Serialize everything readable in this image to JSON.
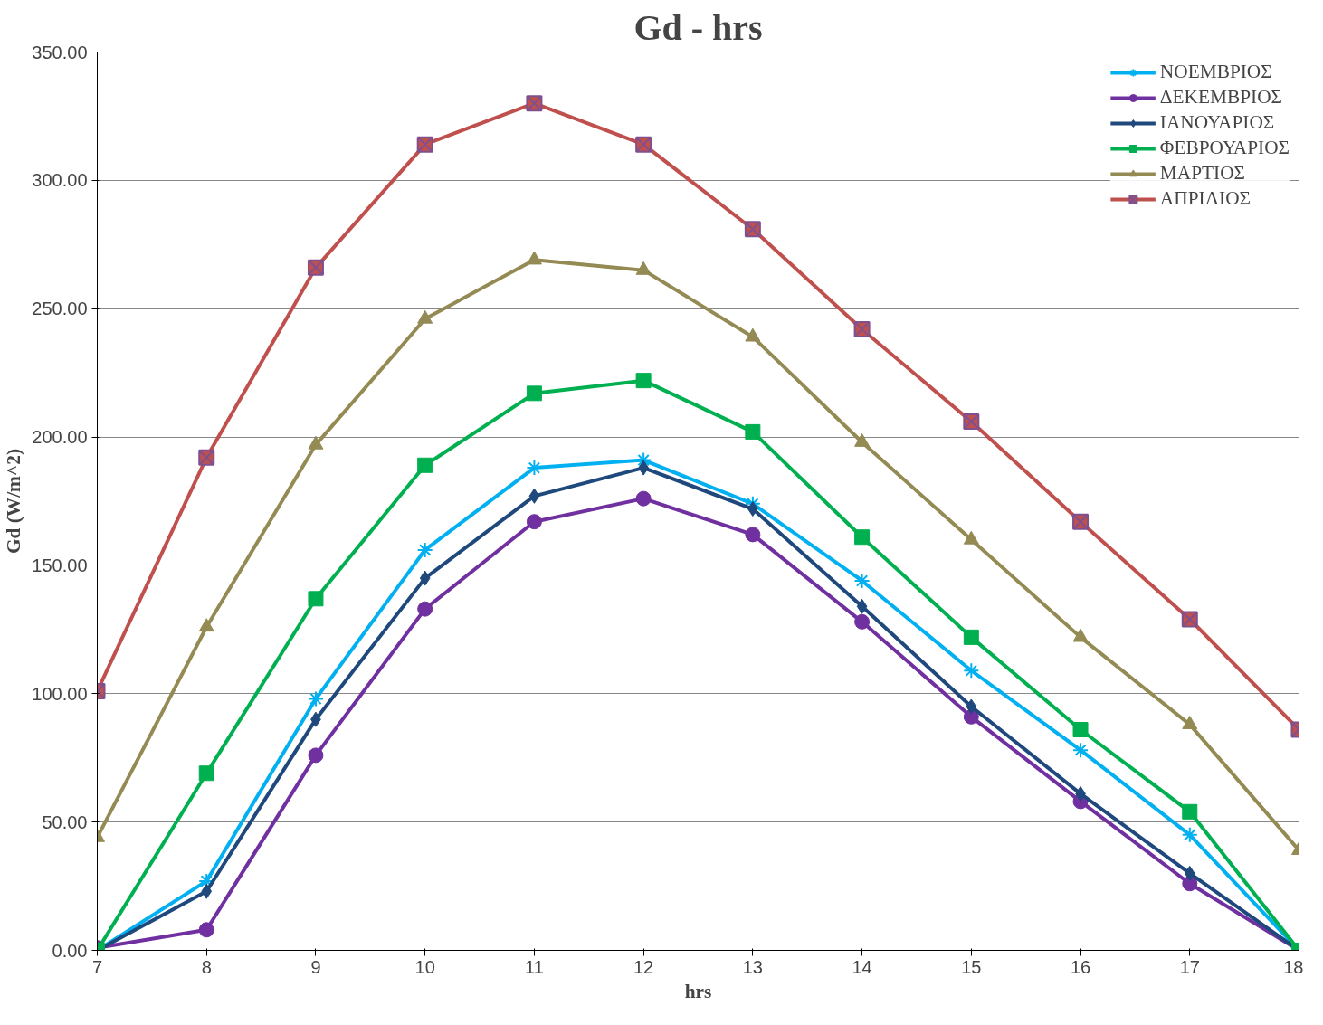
{
  "chart_data": {
    "type": "line",
    "title": "Gd - hrs",
    "xlabel": "hrs",
    "ylabel": "Gd (W/m^2)",
    "x": [
      7,
      8,
      9,
      10,
      11,
      12,
      13,
      14,
      15,
      16,
      17,
      18
    ],
    "xlim": [
      7,
      18
    ],
    "xticks": [
      7,
      8,
      9,
      10,
      11,
      12,
      13,
      14,
      15,
      16,
      17,
      18
    ],
    "ylim": [
      0,
      350
    ],
    "yticks": [
      {
        "value": 0,
        "label": "0.00"
      },
      {
        "value": 50,
        "label": "50.00"
      },
      {
        "value": 100,
        "label": "100.00"
      },
      {
        "value": 150,
        "label": "150.00"
      },
      {
        "value": 200,
        "label": "200.00"
      },
      {
        "value": 250,
        "label": "250.00"
      },
      {
        "value": 300,
        "label": "300.00"
      },
      {
        "value": 350,
        "label": "350.00"
      }
    ],
    "grid": "y",
    "legend": "top right",
    "series": [
      {
        "name": "ΝΟΕΜΒΡΙΟΣ",
        "color": "#00b0f0",
        "marker": "cross",
        "values": [
          0,
          27,
          98,
          156,
          188,
          191,
          174,
          144,
          109,
          78,
          45,
          0
        ]
      },
      {
        "name": "ΔΕΚΕΜΒΡΙΟΣ",
        "color": "#7030a0",
        "marker": "circle",
        "values": [
          1,
          8,
          76,
          133,
          167,
          176,
          162,
          128,
          91,
          58,
          26,
          0
        ]
      },
      {
        "name": "ΙΑΝΟΥΑΡΙΟΣ",
        "color": "#1f497d",
        "marker": "diamond",
        "values": [
          0,
          23,
          90,
          145,
          177,
          188,
          172,
          134,
          95,
          61,
          30,
          0
        ]
      },
      {
        "name": "ΦΕΒΡΟΥΑΡΙΟΣ",
        "color": "#00b050",
        "marker": "square",
        "values": [
          0,
          69,
          137,
          189,
          217,
          222,
          202,
          161,
          122,
          86,
          54,
          0
        ]
      },
      {
        "name": "ΜΑΡΤΙΟΣ",
        "color": "#948a54",
        "marker": "triangle",
        "values": [
          44,
          126,
          197,
          246,
          269,
          265,
          239,
          198,
          160,
          122,
          88,
          39
        ]
      },
      {
        "name": "ΑΠΡΙΛΙΟΣ",
        "color": "#c0504d",
        "marker": "cross",
        "values": [
          101,
          192,
          266,
          314,
          330,
          314,
          281,
          242,
          206,
          167,
          129,
          86
        ]
      }
    ]
  }
}
